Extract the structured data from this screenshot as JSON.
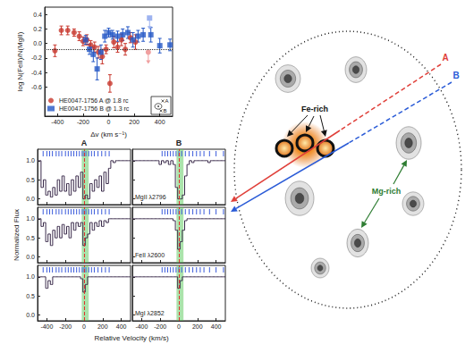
{
  "chart_data": [
    {
      "type": "scatter",
      "xlabel": "Δv (km s⁻¹)",
      "ylabel": "log N(FeII)/N(MgII)",
      "xlim": [
        -500,
        500
      ],
      "xticks": [
        -400,
        -200,
        0,
        200,
        400
      ],
      "ylim": [
        -1.0,
        0.5
      ],
      "yticks": [
        -0.6,
        -0.4,
        -0.2,
        {
          "value": 0,
          "label": "0.0"
        },
        0.2,
        0.4
      ],
      "hline": -0.08,
      "grid": false,
      "legend": "bottom-left",
      "inset": [
        "A",
        "B"
      ],
      "series": [
        {
          "name": "HE0047-1756 A @ 1.8 rc",
          "color": "#c8382e",
          "marker": "circle",
          "x": [
            -420,
            -370,
            -320,
            -270,
            -230,
            -200,
            -170,
            -140,
            -110,
            -80,
            -50,
            -20,
            10,
            40,
            70,
            100,
            130,
            170,
            210
          ],
          "values": [
            -0.1,
            0.18,
            0.18,
            0.15,
            0.1,
            0.03,
            0.05,
            -0.02,
            -0.05,
            -0.12,
            -0.18,
            -0.08,
            -0.55,
            0.02,
            -0.05,
            0.05,
            -0.08,
            0.08,
            0.02
          ],
          "errors": [
            0.08,
            0.06,
            0.06,
            0.05,
            0.06,
            0.06,
            0.07,
            0.06,
            0.07,
            0.08,
            0.1,
            0.06,
            0.12,
            0.08,
            0.07,
            0.08,
            0.08,
            0.07,
            0.1
          ],
          "upper_limit": {
            "x": 310,
            "value": -0.12,
            "color": "#f0a0a0"
          }
        },
        {
          "name": "HE0047-1756 B @ 1.3 rc",
          "color": "#2457c5",
          "marker": "rect",
          "x": [
            -180,
            -150,
            -120,
            -90,
            -60,
            -30,
            0,
            30,
            70,
            110,
            150,
            190,
            230,
            270,
            330,
            400,
            480
          ],
          "values": [
            0.05,
            -0.08,
            -0.15,
            -0.35,
            -0.12,
            0.1,
            0.15,
            0.12,
            0.1,
            0.12,
            0.15,
            0.05,
            0.1,
            0.12,
            0.12,
            -0.03,
            -0.02
          ],
          "errors": [
            0.06,
            0.07,
            0.1,
            0.15,
            0.1,
            0.08,
            0.06,
            0.06,
            0.07,
            0.08,
            0.08,
            0.1,
            0.08,
            0.09,
            0.1,
            0.1,
            0.08
          ],
          "upper_limit": {
            "x": 320,
            "value": 0.35,
            "color": "#9db3f0"
          }
        }
      ]
    },
    {
      "type": "line",
      "xlabel": "Relative Velocity (km/s)",
      "ylabel": "Normalized Flux",
      "columns": [
        "A",
        "B"
      ],
      "rows": [
        "MgII λ2796",
        "FeII λ2600",
        "MgI λ2852"
      ],
      "xlim": [
        -500,
        500
      ],
      "xticks": [
        -400,
        -200,
        0,
        200,
        400
      ],
      "ylim": [
        -0.15,
        1.3
      ],
      "yticks": [
        {
          "value": 0,
          "label": "0.0"
        },
        0.5,
        {
          "value": 1,
          "label": "1.0"
        }
      ],
      "grid": false,
      "color": "#3a2a4a",
      "vline": 0,
      "shaded": [
        -25,
        50
      ],
      "components": {
        "A": [
          -440,
          -400,
          -370,
          -340,
          -300,
          -270,
          -240,
          -200,
          -170,
          -140,
          -110,
          -80,
          -50,
          -20,
          0,
          20,
          50,
          80,
          110,
          150,
          190,
          230,
          270
        ],
        "B": [
          -180,
          -150,
          -120,
          -90,
          -60,
          -30,
          0,
          30,
          70,
          110,
          150,
          190,
          230,
          270,
          330,
          400,
          480
        ]
      },
      "x": [
        -500,
        -475,
        -450,
        -425,
        -400,
        -375,
        -350,
        -325,
        -300,
        -275,
        -250,
        -225,
        -200,
        -175,
        -150,
        -125,
        -100,
        -75,
        -50,
        -25,
        0,
        25,
        50,
        75,
        100,
        125,
        150,
        175,
        200,
        225,
        250,
        275,
        300,
        325,
        350,
        375,
        400,
        425,
        450,
        475,
        500
      ],
      "panels": [
        {
          "column": "A",
          "row": "MgII λ2796",
          "values": [
            1,
            1,
            0.3,
            0.5,
            0.1,
            0.2,
            0.05,
            0.3,
            0.1,
            0.5,
            0.2,
            0.6,
            0.2,
            0.4,
            0.1,
            0.5,
            0.2,
            0.6,
            0.3,
            0.7,
            0.0,
            0.1,
            0.0,
            0.4,
            0.2,
            0.5,
            0.3,
            0.6,
            0.2,
            0.7,
            0.4,
            0.8,
            1,
            0.95,
            1,
            1,
            1,
            1,
            1,
            1,
            1
          ]
        },
        {
          "column": "B",
          "row": "MgII λ2796",
          "values": [
            1,
            1,
            1,
            1,
            1,
            1,
            1,
            1,
            1,
            1,
            1,
            1,
            0.9,
            1,
            0.95,
            1,
            0.9,
            1,
            0.9,
            0.3,
            0.0,
            0.0,
            0.1,
            0.6,
            0.9,
            1,
            0.95,
            1,
            1,
            1,
            1,
            1,
            1,
            0.95,
            1,
            1,
            1,
            1,
            1,
            1,
            1
          ]
        },
        {
          "column": "A",
          "row": "FeII λ2600",
          "values": [
            1,
            1,
            0.8,
            0.9,
            0.4,
            0.6,
            0.3,
            0.7,
            0.5,
            0.8,
            0.5,
            0.85,
            0.6,
            0.8,
            0.5,
            0.9,
            0.7,
            0.9,
            0.8,
            0.9,
            0.3,
            0.5,
            0.6,
            0.9,
            0.7,
            0.9,
            0.8,
            0.95,
            0.8,
            0.95,
            0.9,
            1,
            1,
            1,
            1,
            1,
            1,
            1,
            1,
            1,
            1
          ]
        },
        {
          "column": "B",
          "row": "FeII λ2600",
          "values": [
            1,
            1,
            1,
            1,
            1,
            1,
            1,
            1,
            1,
            1,
            1,
            1,
            1,
            1,
            1,
            1,
            1,
            1,
            0.95,
            0.7,
            0.2,
            0.4,
            0.7,
            0.95,
            1,
            1,
            1,
            1,
            1,
            1,
            1,
            1,
            1,
            1,
            1,
            1,
            1,
            1,
            1,
            1,
            1
          ]
        },
        {
          "column": "A",
          "row": "MgI λ2852",
          "values": [
            1,
            1,
            1,
            1,
            0.7,
            0.9,
            0.8,
            1,
            1,
            1,
            1,
            1,
            1,
            1,
            1,
            1,
            1,
            1,
            1,
            0.95,
            0.6,
            0.8,
            1,
            1,
            1,
            1,
            1,
            1,
            1,
            1,
            1,
            1,
            1,
            1,
            1,
            1,
            1,
            1,
            1,
            1,
            1
          ]
        },
        {
          "column": "B",
          "row": "MgI λ2852",
          "values": [
            1,
            1,
            1,
            1,
            1,
            1,
            1,
            1,
            1,
            1,
            1,
            1,
            1,
            1,
            1,
            1,
            1,
            1,
            1,
            1,
            0.7,
            0.9,
            1,
            1,
            1,
            1,
            1,
            1,
            1,
            1,
            1,
            1,
            1,
            1,
            1,
            1,
            1,
            1,
            1,
            1,
            1
          ]
        }
      ]
    }
  ],
  "diagram": {
    "sightlines": [
      {
        "label": "A",
        "color": "#e0403a"
      },
      {
        "label": "B",
        "color": "#2a5bd7"
      }
    ],
    "fe_label": "Fe-rich",
    "mg_label": "Mg-rich",
    "mg_color": "#2e7d32"
  }
}
